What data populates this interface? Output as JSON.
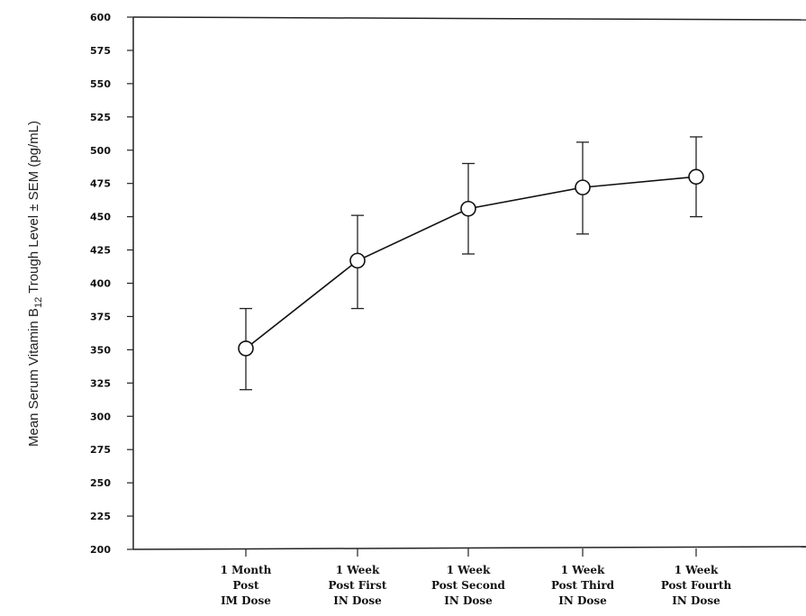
{
  "chart_data": {
    "type": "line",
    "ylabel": {
      "main": "Mean Serum Vitamin B",
      "subscript": "12",
      "rest": " Trough Level   ± SEM (pg/mL)"
    },
    "ylim": [
      200,
      600
    ],
    "yticks": [
      "200",
      "225",
      "250",
      "275",
      "300",
      "325",
      "350",
      "375",
      "400",
      "425",
      "450",
      "475",
      "500",
      "525",
      "550",
      "575",
      "600"
    ],
    "categories": [
      [
        "1 Month",
        "Post",
        "IM Dose"
      ],
      [
        "1 Week",
        "Post First",
        "IN Dose"
      ],
      [
        "1 Week",
        "Post Second",
        "IN Dose"
      ],
      [
        "1 Week",
        "Post Third",
        "IN Dose"
      ],
      [
        "1 Week",
        "Post Fourth",
        "IN Dose"
      ]
    ],
    "series": [
      {
        "values": [
          351,
          417,
          456,
          472,
          480
        ],
        "error_low": [
          320,
          381,
          422,
          437,
          450
        ],
        "error_high": [
          381,
          451,
          490,
          506,
          510
        ]
      }
    ],
    "grid": false,
    "legend": "none"
  }
}
